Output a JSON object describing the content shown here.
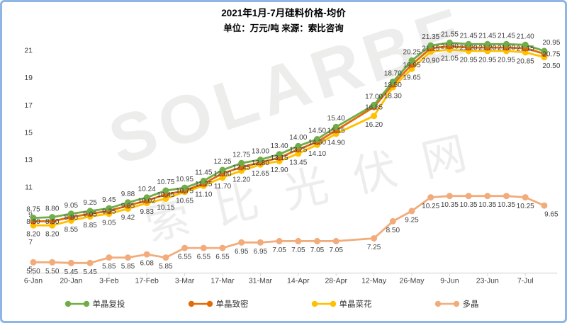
{
  "header": {
    "title": "2021年1月-7月硅料价格-均价",
    "subtitle": "单位：万元/吨 来源：索比咨询"
  },
  "watermark": {
    "latin": "SOLARBE",
    "cjk": "索比光伏网"
  },
  "chart_data": {
    "type": "line",
    "title": "2021年1月-7月硅料价格-均价",
    "subtitle": "单位：万元/吨 来源：索比咨询",
    "x_tick_labels": [
      "6-Jan",
      "20-Jan",
      "3-Feb",
      "17-Feb",
      "3-Mar",
      "17-Mar",
      "31-Mar",
      "14-Apr",
      "28-Apr",
      "12-May",
      "26-May",
      "9-Jun",
      "23-Jun",
      "7-Jul"
    ],
    "x_slots": 28,
    "label_slot_step": 2,
    "missing_week_slot": 17,
    "ylim": [
      5,
      22
    ],
    "y_ticks": [
      5,
      7,
      9,
      11,
      13,
      15,
      17,
      19,
      21
    ],
    "grid": false,
    "legend_position": "bottom",
    "axis_color": "#D9D9D9",
    "label_color": "#404040",
    "series": [
      {
        "name": "单晶复投",
        "key": "mono-recast",
        "color": "#70AD47",
        "label_position": "above",
        "values": [
          8.75,
          8.8,
          9.05,
          9.25,
          9.45,
          9.88,
          10.24,
          10.75,
          10.95,
          11.45,
          12.25,
          12.75,
          13.0,
          13.4,
          14.0,
          14.5,
          15.4,
          17.0,
          18.7,
          20.25,
          21.35,
          21.55,
          21.45,
          21.45,
          21.45,
          21.4,
          20.95
        ]
      },
      {
        "name": "单晶致密",
        "key": "mono-dense",
        "color": "#E36C0A",
        "label_position": "center",
        "values": [
          8.5,
          8.5,
          8.8,
          9.05,
          9.25,
          9.65,
          10.02,
          10.45,
          10.75,
          11.25,
          12.0,
          12.45,
          12.8,
          13.15,
          13.75,
          14.3,
          15.15,
          16.85,
          18.5,
          19.95,
          21.15,
          21.3,
          21.2,
          21.2,
          21.2,
          21.15,
          20.75
        ]
      },
      {
        "name": "单晶菜花",
        "key": "mono-cauliflower",
        "color": "#FFC000",
        "label_position": "below",
        "values": [
          8.2,
          8.2,
          8.55,
          8.85,
          9.05,
          9.42,
          9.83,
          10.15,
          10.65,
          11.1,
          11.7,
          12.2,
          12.65,
          12.9,
          13.45,
          14.1,
          14.9,
          16.2,
          18.3,
          19.65,
          20.9,
          21.05,
          20.95,
          20.95,
          20.95,
          20.85,
          20.5
        ]
      },
      {
        "name": "多晶",
        "key": "poly",
        "color": "#F2AC7C",
        "label_position": "below",
        "values": [
          5.5,
          5.5,
          5.45,
          5.45,
          5.85,
          5.85,
          6.08,
          5.85,
          6.55,
          6.55,
          6.55,
          6.95,
          6.95,
          7.05,
          7.05,
          7.05,
          7.05,
          7.25,
          8.5,
          9.25,
          10.25,
          10.35,
          10.35,
          10.35,
          10.35,
          10.25,
          9.65
        ]
      }
    ]
  }
}
